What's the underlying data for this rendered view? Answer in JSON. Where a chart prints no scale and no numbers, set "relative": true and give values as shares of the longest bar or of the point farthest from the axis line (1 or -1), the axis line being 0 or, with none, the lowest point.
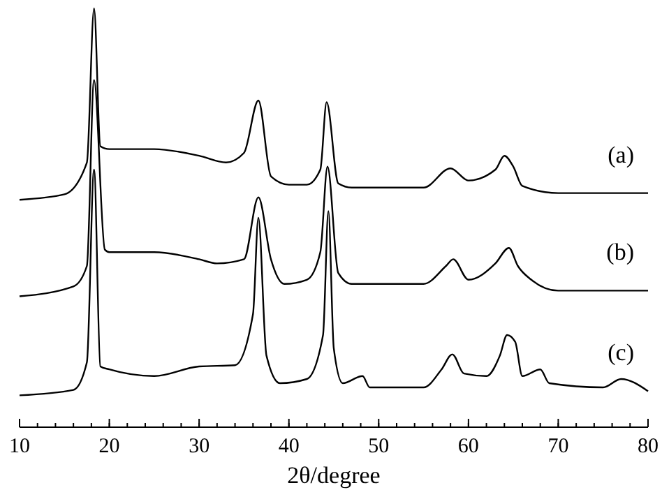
{
  "chart_data": {
    "type": "line",
    "relative": true,
    "xlabel": "2θ/degree",
    "xlim": [
      10,
      80
    ],
    "xticks": [
      10,
      20,
      30,
      40,
      50,
      60,
      70,
      80
    ],
    "legend": false,
    "marker": "none",
    "line_style": "solid",
    "series": [
      {
        "name": "(a)",
        "color": "#000000",
        "x": [
          10,
          15,
          17.5,
          18.3,
          19,
          20,
          25,
          30,
          33,
          35,
          36.6,
          38,
          40,
          42,
          43.5,
          44.2,
          45.5,
          47,
          55,
          58,
          60,
          63,
          64,
          65,
          66,
          70,
          80
        ],
        "values": [
          0.543,
          0.556,
          0.632,
          1.0,
          0.671,
          0.664,
          0.664,
          0.648,
          0.632,
          0.655,
          0.78,
          0.599,
          0.579,
          0.579,
          0.615,
          0.776,
          0.582,
          0.572,
          0.572,
          0.618,
          0.589,
          0.615,
          0.648,
          0.622,
          0.576,
          0.559,
          0.559
        ]
      },
      {
        "name": "(b)",
        "color": "#000000",
        "x": [
          10,
          16,
          17.5,
          18.3,
          19.5,
          20,
          25,
          30,
          32,
          35,
          36.6,
          38,
          39.5,
          42,
          43.5,
          44.3,
          45.5,
          47,
          55,
          57.5,
          58.3,
          60,
          63,
          64.5,
          65.5,
          67,
          70,
          80
        ],
        "values": [
          0.3125,
          0.336,
          0.385,
          0.829,
          0.424,
          0.418,
          0.418,
          0.401,
          0.391,
          0.401,
          0.549,
          0.401,
          0.342,
          0.352,
          0.418,
          0.622,
          0.368,
          0.342,
          0.342,
          0.385,
          0.401,
          0.352,
          0.391,
          0.428,
          0.385,
          0.352,
          0.326,
          0.326
        ]
      },
      {
        "name": "(c)",
        "color": "#000000",
        "x": [
          10,
          16,
          17.5,
          18.3,
          19,
          20,
          25,
          30,
          34,
          36,
          36.6,
          37.5,
          39,
          42,
          43.8,
          44.4,
          45,
          46,
          48.2,
          49,
          55,
          57,
          58.2,
          59.5,
          62,
          63.5,
          64.3,
          65.2,
          66,
          68,
          69,
          75,
          77,
          80
        ],
        "values": [
          0.076,
          0.089,
          0.155,
          0.615,
          0.145,
          0.138,
          0.122,
          0.145,
          0.148,
          0.27,
          0.5,
          0.171,
          0.105,
          0.115,
          0.22,
          0.516,
          0.188,
          0.105,
          0.122,
          0.095,
          0.095,
          0.138,
          0.174,
          0.128,
          0.122,
          0.171,
          0.22,
          0.204,
          0.122,
          0.138,
          0.105,
          0.095,
          0.115,
          0.086
        ]
      }
    ]
  }
}
